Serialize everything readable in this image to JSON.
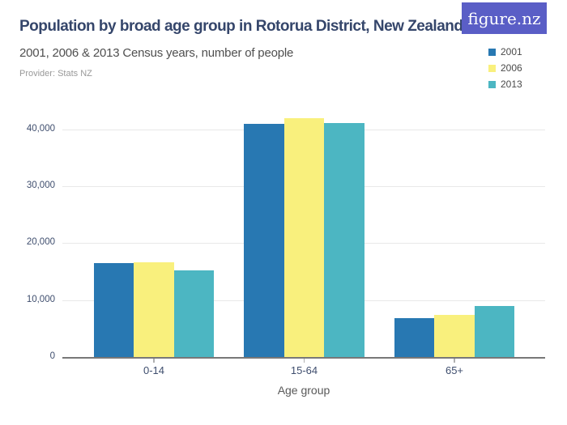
{
  "logo": {
    "text": "figure.nz"
  },
  "header": {
    "provider": "Provider: Stats NZ"
  },
  "colors": {
    "background": "#ffffff",
    "logo_bg": "#5a5ec6",
    "title_text": "#35466b",
    "subtitle_text": "#4f4f4f",
    "provider_text": "#999999",
    "axis_text": "#3f4e6e",
    "axis_title_text": "#595959",
    "legend_text": "#4a4a4a",
    "gridline": "#e8e8e8",
    "baseline": "#787878",
    "tick": "#b0b0b0"
  },
  "chart_data": {
    "type": "bar",
    "title": "Population by broad age group in Rotorua District, New Zealand",
    "subtitle": "2001, 2006 & 2013 Census years, number of people",
    "categories": [
      "0-14",
      "15-64",
      "65+"
    ],
    "series": [
      {
        "name": "2001",
        "color": "#2878b2",
        "values": [
          16600,
          41000,
          6900
        ]
      },
      {
        "name": "2006",
        "color": "#f9f07d",
        "values": [
          16700,
          42000,
          7400
        ]
      },
      {
        "name": "2013",
        "color": "#4cb6c2",
        "values": [
          15300,
          41200,
          9100
        ]
      }
    ],
    "xlabel": "Age group",
    "ylabel": "",
    "ylim": [
      0,
      45000
    ],
    "yticks": [
      0,
      10000,
      20000,
      30000,
      40000
    ],
    "ytick_labels": [
      "0",
      "10,000",
      "20,000",
      "30,000",
      "40,000"
    ],
    "grid": true,
    "legend_position": "top-right"
  }
}
